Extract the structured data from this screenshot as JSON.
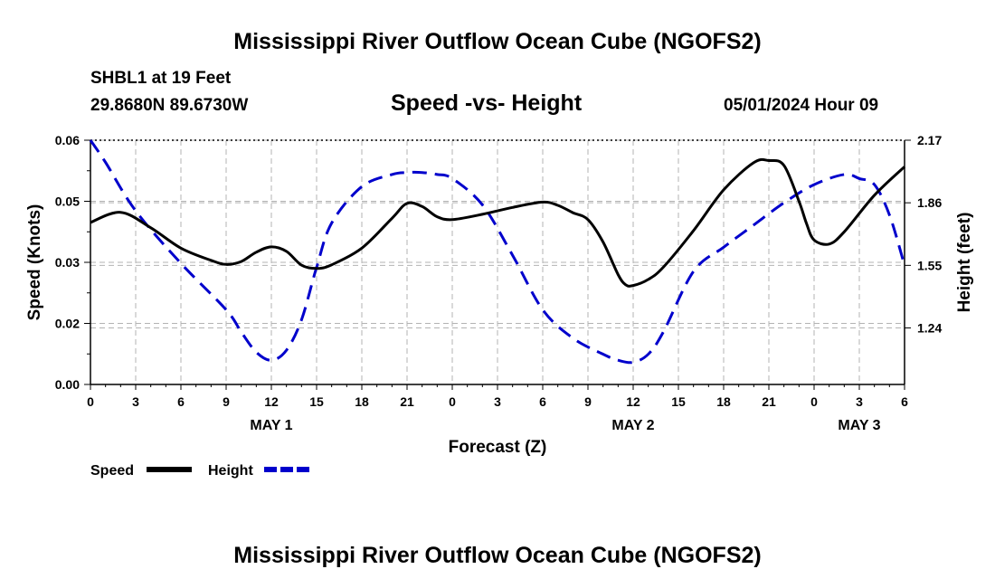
{
  "page_title": "Mississippi River Outflow Ocean Cube (NGOFS2)",
  "station_line": "SHBL1 at 19 Feet",
  "coords_line": "29.8680N  89.6730W",
  "subtitle": "Speed -vs- Height",
  "timestamp": "05/01/2024 Hour 09",
  "footer_title": "Mississippi River Outflow Ocean Cube (NGOFS2)",
  "chart_data": {
    "type": "line",
    "title": "Speed -vs- Height",
    "xlabel": "Forecast (Z)",
    "ylabel": "Speed (Knots)",
    "y2label": "Height (feet)",
    "xlim": [
      0,
      54
    ],
    "ylim": [
      0,
      0.06
    ],
    "y2lim": [
      0.96,
      2.17
    ],
    "x_ticks": [
      0,
      3,
      6,
      9,
      12,
      15,
      18,
      21,
      24,
      27,
      30,
      33,
      36,
      39,
      42,
      45,
      48,
      51,
      54
    ],
    "x_tick_labels": [
      "0",
      "3",
      "6",
      "9",
      "12",
      "15",
      "18",
      "21",
      "0",
      "3",
      "6",
      "9",
      "12",
      "15",
      "18",
      "21",
      "0",
      "3",
      "6"
    ],
    "date_labels": [
      {
        "x": 12,
        "label": "MAY 1"
      },
      {
        "x": 36,
        "label": "MAY 2"
      },
      {
        "x": 51,
        "label": "MAY 3"
      }
    ],
    "y_ticks": [
      0,
      0.015,
      0.03,
      0.045,
      0.06
    ],
    "y_tick_labels": [
      "0.00",
      "0.02",
      "0.03",
      "0.05",
      "0.06"
    ],
    "y2_ticks": [
      1.24,
      1.55,
      1.86,
      2.17
    ],
    "y2_tick_labels": [
      "1.24",
      "1.55",
      "1.86",
      "2.17"
    ],
    "grid": true,
    "legend": [
      {
        "label": "Speed",
        "color": "#000000",
        "dash": "solid"
      },
      {
        "label": "Height",
        "color": "#0000cc",
        "dash": "dashed"
      }
    ],
    "series": [
      {
        "name": "Speed",
        "axis": "left",
        "color": "#000000",
        "x": [
          0,
          2,
          4,
          6,
          8,
          9,
          10,
          11,
          12,
          13,
          14,
          15,
          16,
          18,
          20,
          21,
          22,
          23,
          24,
          26,
          28,
          30,
          31,
          32,
          33,
          34,
          35,
          35.5,
          36,
          37,
          38,
          40,
          42,
          44,
          45,
          46,
          47,
          47.5,
          48,
          49,
          50,
          52,
          54
        ],
        "y": [
          0.0398,
          0.0423,
          0.0385,
          0.0335,
          0.0305,
          0.0295,
          0.0302,
          0.0325,
          0.0338,
          0.0327,
          0.0293,
          0.0285,
          0.0294,
          0.0335,
          0.0408,
          0.0445,
          0.0437,
          0.0412,
          0.0405,
          0.0418,
          0.0435,
          0.0448,
          0.044,
          0.0422,
          0.0405,
          0.035,
          0.027,
          0.0245,
          0.0243,
          0.0258,
          0.0288,
          0.0378,
          0.0478,
          0.0545,
          0.055,
          0.0538,
          0.045,
          0.0395,
          0.0355,
          0.0345,
          0.0375,
          0.0465,
          0.0535
        ]
      },
      {
        "name": "Height",
        "axis": "right",
        "color": "#0000cc",
        "x": [
          0,
          1,
          3,
          6,
          9,
          10,
          11,
          12,
          13,
          14,
          15,
          16,
          18,
          20,
          21,
          22,
          23,
          24,
          26,
          28,
          30,
          32,
          34,
          35,
          36,
          37,
          38,
          40,
          42,
          44,
          46,
          48,
          50,
          51,
          52,
          53,
          54
        ],
        "y": [
          2.17,
          2.06,
          1.82,
          1.56,
          1.33,
          1.22,
          1.12,
          1.08,
          1.13,
          1.28,
          1.54,
          1.76,
          1.94,
          2.0,
          2.01,
          2.01,
          2.0,
          1.98,
          1.85,
          1.6,
          1.33,
          1.19,
          1.11,
          1.08,
          1.07,
          1.11,
          1.22,
          1.52,
          1.64,
          1.75,
          1.86,
          1.95,
          2.0,
          1.98,
          1.95,
          1.8,
          1.55
        ]
      }
    ]
  }
}
